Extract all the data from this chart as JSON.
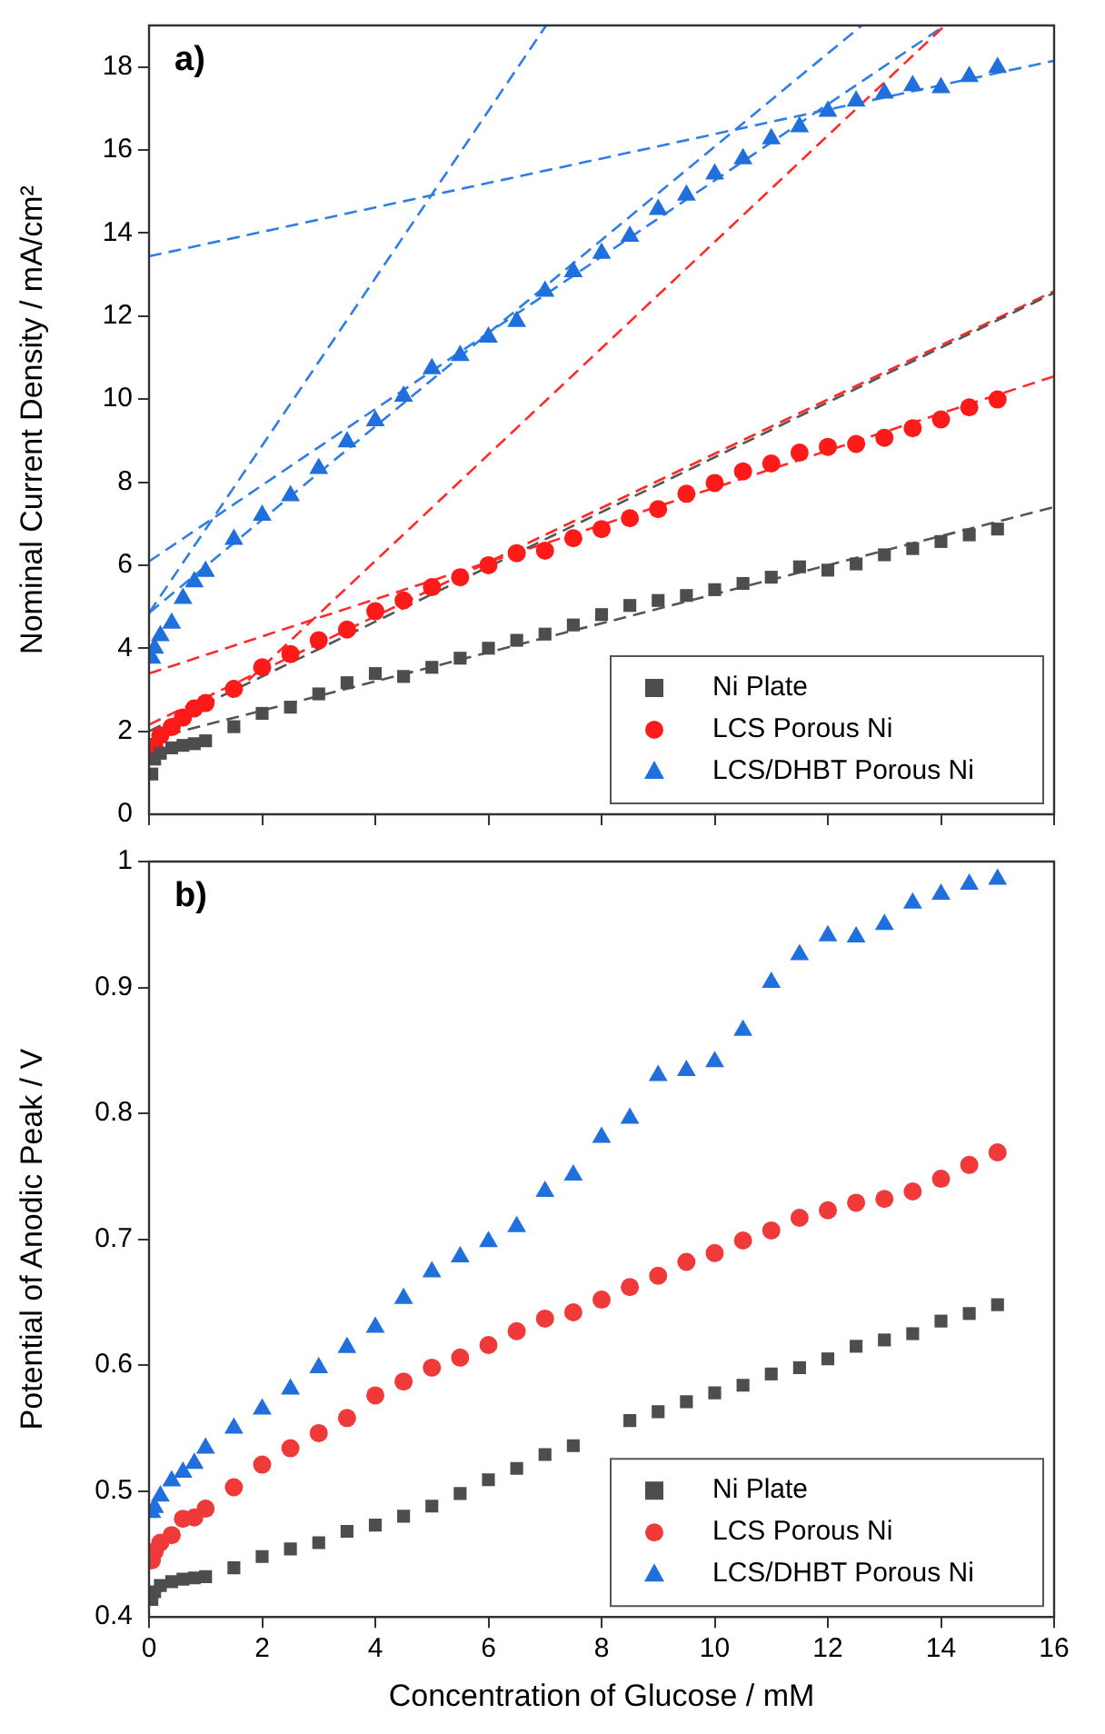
{
  "chart_data": [
    {
      "type": "scatter",
      "ylabel": "Nominal Current Density / mA/cm²",
      "annotations": [
        "a)"
      ],
      "xlim": [
        0,
        16
      ],
      "xticks": [
        0,
        2,
        4,
        6,
        8,
        10,
        12,
        14,
        16
      ],
      "ylim": [
        0,
        19
      ],
      "yticks": [
        0,
        2,
        4,
        6,
        8,
        10,
        12,
        14,
        16,
        18
      ],
      "tick_labels": "y",
      "legend": "bottom right",
      "x": [
        0.05,
        0.1,
        0.2,
        0.4,
        0.6,
        0.8,
        1,
        1.5,
        2,
        2.5,
        3,
        3.5,
        4,
        4.5,
        5,
        5.5,
        6,
        6.5,
        7,
        7.5,
        8,
        8.5,
        9,
        9.5,
        10,
        10.5,
        11,
        11.5,
        12,
        12.5,
        13,
        13.5,
        14,
        14.5,
        15
      ],
      "series": [
        {
          "name": "Ni Plate",
          "color": "#4d4d4d",
          "marker": "square",
          "values": [
            0.97,
            1.33,
            1.47,
            1.6,
            1.66,
            1.7,
            1.77,
            2.11,
            2.43,
            2.58,
            2.9,
            3.17,
            3.39,
            3.32,
            3.54,
            3.76,
            4.0,
            4.19,
            4.34,
            4.56,
            4.81,
            5.03,
            5.15,
            5.27,
            5.41,
            5.56,
            5.71,
            5.96,
            5.88,
            6.03,
            6.25,
            6.4,
            6.57,
            6.73,
            6.87
          ]
        },
        {
          "name": "LCS Porous Ni",
          "color": "#ff1a1a",
          "marker": "circle",
          "values": [
            null,
            1.6,
            1.9,
            2.1,
            2.33,
            2.55,
            2.68,
            3.02,
            3.54,
            3.86,
            4.19,
            4.45,
            4.89,
            5.15,
            5.47,
            5.71,
            6.0,
            6.29,
            6.35,
            6.65,
            6.87,
            7.13,
            7.35,
            7.72,
            7.98,
            8.26,
            8.45,
            8.71,
            8.85,
            8.92,
            9.07,
            9.3,
            9.51,
            9.8,
            9.99
          ]
        },
        {
          "name": "LCS/DHBT Porous Ni",
          "color": "#1f6fdc",
          "marker": "triangle",
          "values": [
            3.76,
            4.0,
            4.3,
            4.6,
            5.2,
            5.6,
            5.85,
            6.62,
            7.2,
            7.67,
            8.33,
            8.97,
            9.48,
            10.07,
            10.73,
            11.05,
            11.49,
            11.87,
            12.6,
            13.07,
            13.51,
            13.92,
            14.57,
            14.91,
            15.42,
            15.79,
            16.27,
            16.56,
            16.93,
            17.18,
            17.37,
            17.55,
            17.5,
            17.77,
            17.99
          ]
        },
        {
          "type": "line",
          "color": "#555555",
          "line_style": "dashed",
          "marker": "none",
          "x": [
            0,
            16
          ],
          "values": [
            2.0,
            12.56
          ]
        },
        {
          "type": "line",
          "color": "#555555",
          "line_style": "dashed",
          "marker": "none",
          "x": [
            0,
            16
          ],
          "values": [
            1.8,
            7.4
          ]
        },
        {
          "type": "line",
          "color": "#ff2a2a",
          "line_style": "dashed",
          "marker": "none",
          "x": [
            0,
            16
          ],
          "values": [
            2.16,
            12.6
          ]
        },
        {
          "type": "line",
          "color": "#ff2a2a",
          "line_style": "dashed",
          "marker": "none",
          "x": [
            0,
            16
          ],
          "values": [
            3.39,
            10.55
          ]
        },
        {
          "type": "line",
          "color": "#ff2a2a",
          "line_style": "dashed",
          "marker": "none",
          "x": [
            1.5,
            14.07
          ],
          "values": [
            2.9,
            19
          ]
        },
        {
          "type": "line",
          "color": "#2f7ee6",
          "line_style": "dashed",
          "marker": "none",
          "x": [
            0,
            7.02
          ],
          "values": [
            4.85,
            19
          ]
        },
        {
          "type": "line",
          "color": "#2f7ee6",
          "line_style": "dashed",
          "marker": "none",
          "x": [
            0,
            14.07
          ],
          "values": [
            6.09,
            19
          ]
        },
        {
          "type": "line",
          "color": "#2f7ee6",
          "line_style": "dashed",
          "marker": "none",
          "x": [
            0,
            12.6
          ],
          "values": [
            4.85,
            19
          ]
        },
        {
          "type": "line",
          "color": "#2f7ee6",
          "line_style": "dashed",
          "marker": "none",
          "x": [
            0,
            16
          ],
          "values": [
            13.44,
            18.15
          ]
        }
      ]
    },
    {
      "type": "scatter",
      "xlabel": "Concentration of Glucose / mM",
      "ylabel": "Potential of Anodic Peak / V",
      "annotations": [
        "b)"
      ],
      "xlim": [
        0,
        16
      ],
      "xticks": [
        0,
        2,
        4,
        6,
        8,
        10,
        12,
        14,
        16
      ],
      "ylim": [
        0.4,
        1.0
      ],
      "yticks": [
        0.4,
        0.5,
        0.6,
        0.7,
        0.8,
        0.9,
        1.0
      ],
      "legend": "bottom right",
      "x": [
        0.05,
        0.1,
        0.2,
        0.4,
        0.6,
        0.8,
        1,
        1.5,
        2,
        2.5,
        3,
        3.5,
        4,
        4.5,
        5,
        5.5,
        6,
        6.5,
        7,
        7.5,
        8,
        8.5,
        9,
        9.5,
        10,
        10.5,
        11,
        11.5,
        12,
        12.5,
        13,
        13.5,
        14,
        14.5,
        15
      ],
      "series": [
        {
          "name": "Ni Plate",
          "color": "#4d4d4d",
          "marker": "square",
          "values": [
            0.414,
            0.42,
            0.425,
            0.428,
            0.43,
            0.431,
            0.432,
            0.439,
            0.448,
            0.454,
            0.459,
            0.468,
            0.473,
            0.48,
            0.488,
            0.498,
            0.509,
            0.518,
            0.529,
            0.536,
            null,
            0.556,
            0.563,
            0.571,
            0.578,
            0.584,
            0.593,
            0.598,
            0.605,
            0.615,
            0.62,
            0.625,
            0.635,
            0.641,
            0.648
          ]
        },
        {
          "name": "LCS Porous Ni",
          "color": "#f03a3a",
          "marker": "circle",
          "values": [
            0.445,
            0.452,
            0.459,
            0.465,
            0.478,
            0.479,
            0.486,
            0.503,
            0.521,
            0.534,
            0.546,
            0.558,
            0.576,
            0.587,
            0.598,
            0.606,
            0.616,
            0.627,
            0.637,
            0.642,
            0.652,
            0.662,
            0.671,
            0.682,
            0.689,
            0.699,
            0.707,
            0.717,
            0.723,
            0.729,
            0.732,
            0.738,
            0.748,
            0.759,
            0.769
          ]
        },
        {
          "name": "LCS/DHBT Porous Ni",
          "color": "#1f6fdc",
          "marker": "triangle",
          "values": [
            0.483,
            0.487,
            0.496,
            0.508,
            0.515,
            0.522,
            0.534,
            0.55,
            0.565,
            0.581,
            0.598,
            0.614,
            0.63,
            0.653,
            0.674,
            0.686,
            0.698,
            0.71,
            0.738,
            0.751,
            0.781,
            0.796,
            0.83,
            0.834,
            0.841,
            0.866,
            0.904,
            0.926,
            0.941,
            0.94,
            0.95,
            0.967,
            0.974,
            0.982,
            0.986
          ]
        }
      ]
    }
  ]
}
